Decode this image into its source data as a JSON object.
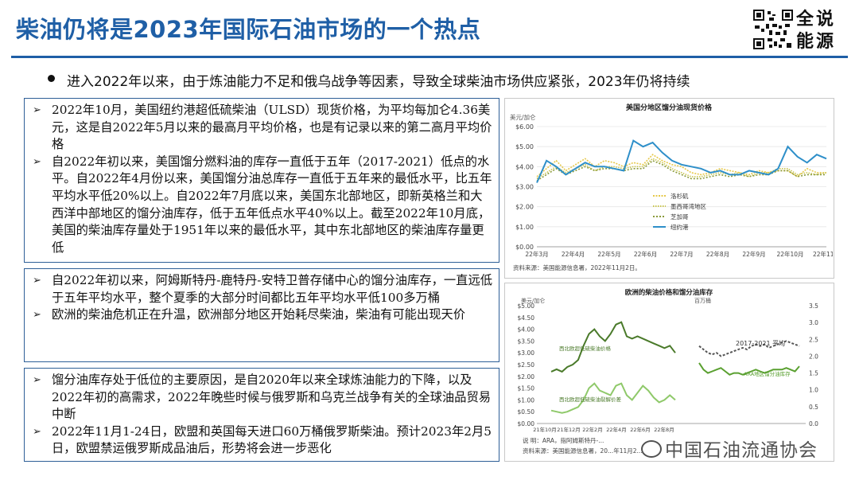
{
  "slide": {
    "title": "柴油仍将是2023年国际石油市场的一个热点",
    "logo_text": [
      "全说",
      "能源"
    ],
    "summary": "进入2022年以来，由于炼油能力不足和俄乌战争等因素，导致全球柴油市场供应紧张，2023年仍将持续"
  },
  "boxes": [
    {
      "items": [
        "2022年10月，美国纽约港超低硫柴油（ULSD）现货价格，为平均每加仑4.36美元，这是自2022年5月以来的最高月平均价格，也是有记录以来的第二高月平均价格",
        "自2022年初以来，美国馏分燃料油的库存一直低于五年（2017-2021）低点的水平。自2022年4月份以来，美国馏分油总库存一直低于五年来的最低水平，比五年平均水平低20%以上。自2022年7月底以来，美国东北部地区，即新英格兰和大西洋中部地区的馏分油库存，低于五年低点水平40%以上。截至2022年10月底，美国的柴油库存量处于1951年以来的最低水平，其中东北部地区的柴油库存量更低"
      ]
    },
    {
      "items": [
        "自2022年初以来，阿姆斯特丹-鹿特丹-安特卫普存储中心的馏分油库存，一直远低于五年平均水平，整个夏季的大部分时间都比五年平均水平低100多万桶",
        "欧洲的柴油危机正在升温，欧洲部分地区开始耗尽柴油，柴油有可能出现天价"
      ]
    },
    {
      "items": [
        "馏分油库存处于低位的主要原因，是自2020年以来全球炼油能力的下降，以及2022年初的高需求，2022年晚些时候与俄罗斯和乌克兰战争有关的全球油品贸易中断",
        "2022年11月1-24日，欧盟和英国每天进口60万桶俄罗斯柴油。预计2023年2月5日，欧盟禁运俄罗斯成品油后，形势将会进一步恶化"
      ]
    }
  ],
  "chart_data": [
    {
      "type": "line",
      "title": "美国分地区馏分油现货价格",
      "ylabel": "美元/加仑",
      "ylim": [
        0,
        6
      ],
      "yticks": [
        "$0.00",
        "$1.00",
        "$2.00",
        "$3.00",
        "$4.00",
        "$5.00",
        "$6.00"
      ],
      "xticks": [
        "22年3月",
        "22年4月",
        "22年5月",
        "22年6月",
        "22年7月",
        "22年8月",
        "22年9月",
        "22年10月",
        "22年11月"
      ],
      "source": "资料来源：美国能源信息署，2022年11月2日。",
      "colors": {
        "洛杉矶": "#e6c84a",
        "墨西哥湾地区": "#c9c54f",
        "芝加哥": "#8a9a3a",
        "纽约港": "#2e8fc9"
      },
      "series": [
        {
          "name": "洛杉矶",
          "values": [
            3.5,
            3.9,
            4.3,
            3.8,
            4.1,
            4.4,
            4.0,
            4.3,
            4.2,
            4.0,
            4.2,
            4.1,
            4.6,
            4.3,
            4.1,
            4.0,
            3.7,
            3.6,
            3.7,
            3.9,
            3.8,
            3.7,
            3.6,
            3.8,
            3.7,
            3.8,
            3.8,
            3.5,
            3.9,
            3.7,
            3.7
          ]
        },
        {
          "name": "墨西哥湾地区",
          "values": [
            3.4,
            3.7,
            4.0,
            3.7,
            3.9,
            4.1,
            3.8,
            4.0,
            4.0,
            3.9,
            4.0,
            4.0,
            4.4,
            4.2,
            3.9,
            3.7,
            3.5,
            3.5,
            3.6,
            3.7,
            3.6,
            3.7,
            3.5,
            3.7,
            3.7,
            3.9,
            3.9,
            3.6,
            3.7,
            3.6,
            3.7
          ]
        },
        {
          "name": "芝加哥",
          "values": [
            3.3,
            3.6,
            3.9,
            3.6,
            3.8,
            4.0,
            3.8,
            3.9,
            3.9,
            3.8,
            3.9,
            3.9,
            4.3,
            4.1,
            3.8,
            3.6,
            3.4,
            3.4,
            3.5,
            3.6,
            3.5,
            3.6,
            3.5,
            3.6,
            3.6,
            3.8,
            3.8,
            3.5,
            3.6,
            3.6,
            3.6
          ]
        },
        {
          "name": "纽约港",
          "values": [
            3.2,
            4.3,
            4.0,
            3.6,
            3.9,
            4.2,
            4.0,
            4.0,
            3.9,
            3.8,
            5.3,
            5.0,
            5.2,
            4.7,
            4.3,
            4.1,
            4.0,
            3.9,
            3.7,
            3.8,
            3.6,
            3.6,
            3.8,
            3.7,
            3.6,
            3.9,
            5.0,
            4.5,
            4.2,
            4.6,
            4.4
          ]
        }
      ]
    },
    {
      "type": "line",
      "title": "欧洲的柴油价格和馏分油库存",
      "ylabel": "美元/加仑",
      "ylabel_right": "百万桶",
      "ylim": [
        0,
        5
      ],
      "ylim_right": [
        0,
        3.5
      ],
      "yticks": [
        "$0.00",
        "$0.50",
        "$1.00",
        "$1.50",
        "$2.00",
        "$2.50",
        "$3.00",
        "$3.50",
        "$4.00",
        "$4.50",
        "$5.00"
      ],
      "yticks_right": [
        "0.0",
        "0.5",
        "1.0",
        "1.5",
        "2.0",
        "2.5",
        "3.0",
        "3.5"
      ],
      "xticks": [
        "21年10月",
        "21年12月",
        "22年2月",
        "22年4月",
        "22年6月",
        "22年8月"
      ],
      "source_lines": [
        "说    明：ARA，指阿姆斯特丹-...",
        "资料来源：美国能源信息署，20...年11月2..."
      ],
      "colors": {
        "price": "#4a7a2a",
        "crack": "#8fc96a",
        "stock_avg": "#555555",
        "ara": "#5aa030"
      },
      "labels": {
        "price": "西北欧超低硫柴油价格",
        "crack": "西北欧超低硫柴油裂解价差",
        "stock_avg": "2017-2021 平均",
        "ara": "ARA地区馏分油库存"
      },
      "series": [
        {
          "name": "西北欧超低硫柴油价格",
          "values": [
            2.2,
            2.3,
            2.2,
            2.4,
            2.5,
            2.7,
            3.3,
            3.8,
            4.0,
            3.7,
            3.5,
            3.8,
            4.2,
            4.3,
            3.7,
            3.6,
            3.7,
            3.6,
            3.5,
            3.4,
            3.3,
            3.2,
            3.3,
            3.0
          ]
        },
        {
          "name": "西北欧超低硫柴油裂解价差",
          "values": [
            0.55,
            0.5,
            0.45,
            0.5,
            0.6,
            0.7,
            1.0,
            1.5,
            1.7,
            1.4,
            1.3,
            1.2,
            1.6,
            1.7,
            1.2,
            1.0,
            1.3,
            1.6,
            1.4,
            1.1,
            0.9,
            1.0,
            1.2,
            1.0
          ]
        },
        {
          "name": "2017-2021 平均",
          "axis": "right",
          "values": [
            2.3,
            2.2,
            2.1,
            2.05,
            2.1,
            2.0,
            2.05,
            2.1,
            2.15,
            2.2,
            2.25,
            2.2,
            2.3,
            2.35,
            2.3,
            2.35,
            2.25,
            2.3,
            2.35,
            2.4,
            2.45,
            2.4,
            2.35,
            2.3
          ]
        },
        {
          "name": "ARA地区馏分油库存",
          "axis": "right",
          "values": [
            1.8,
            1.6,
            1.5,
            1.55,
            1.6,
            1.65,
            1.55,
            1.45,
            1.5,
            1.5,
            1.45,
            1.5,
            1.55,
            1.6,
            1.55,
            1.5,
            1.55,
            1.6,
            1.6,
            1.6,
            1.65,
            1.6,
            1.55,
            1.7
          ]
        }
      ]
    }
  ],
  "watermark": "中国石油流通协会"
}
